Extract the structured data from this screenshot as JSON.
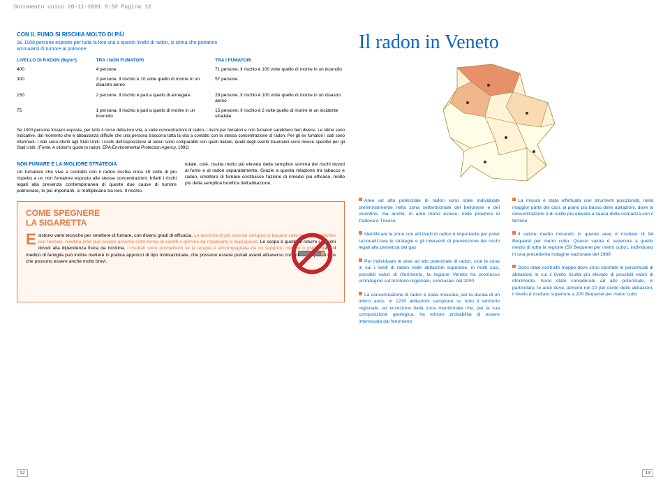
{
  "header": "Documento unico  20-11-2001 9:50  Pagina 12",
  "left": {
    "section_title": "CON IL FUMO SI RISCHIA MOLTO DI PIÙ",
    "intro": "Su 1000 persone esposte per tutta la loro vita a questo livello di radon, si stima che potranno ammalarsi di tumore al polmone:",
    "table": {
      "headers": [
        "LIVELLO DI RADON (Bq/m³)",
        "TRA I NON FUMATORI",
        "TRA I FUMATORI"
      ],
      "rows": [
        [
          "400",
          "4 persone",
          "71 persone. Il rischio è 100 volte quello di morire in un incendio"
        ],
        [
          "300",
          "3 persone. Il rischio è 10 volte quello di morire in un disastro aereo",
          "57 persone"
        ],
        [
          "150",
          "2 persone. Il rischio è pari a quello di annegare",
          "29 persone. Il rischio è 100 volte quello di morire in un disastro aereo"
        ],
        [
          "75",
          "1 persona. Il rischio è pari a quello di morire in un incendio",
          "15 persone. Il rischio è 2 volte quello di morire in un incidente stradale"
        ]
      ]
    },
    "footnote": "Se 1000 persone fossero esposte, per tutto il corso della loro vita, a varie concentrazioni di radon, i rischi per fumatori e non fumatori sarebbero ben diversi. Le stime sono indicative, dal momento che è abbastanza difficile che una persona trascorra tutta la vita a contatto con la stessa concentrazione di radon. Per gli ex fumatori i dati sono intermedi. I dati sono riferiti agli Stati Uniti: i rischi dell'esposizione al radon sono comparabili con quelli italiani, quelli degli eventi traumatici sono invece specifici per gli Stati Uniti. (Fonte: A citizen's guide to radon, EPA-Environmental Protection Agency, 1992)",
    "col_title": "NON FUMARE È LA MIGLIORE STRATEGIA",
    "col1": "Un fumatore che vive a contatto con il radon rischia circa 15 volte di più rispetto a un non fumatore esposto alle stesse concentrazioni. Infatti i rischi legati alla presenza contemporanea di queste due cause di tumore polmonare, le più importanti, si moltiplicano tra loro. Il rischio",
    "col2": "totale, cioè, risulta molto più elevato della semplice somma dei rischi dovuti al fumo e al radon separatamente. Grazie a questa relazione tra tabacco e radon, smettere di fumare costituisce l'azione di rimedio più efficace, molto più della semplice bonifica dell'abitazione.",
    "box": {
      "title1": "COME SPEGNERE",
      "title2": "LA SIGARETTA",
      "dropcap": "E",
      "body_parts": [
        {
          "text": "sistono varie tecniche per smettere di fumare, con diversi gradi di efficacia. ",
          "orange": false
        },
        {
          "text": "Le tecniche di più recente sviluppo si basano sulle terapie sostitutive con farmaci, nicotina (che può essere assunta sotto forma di cerotti o gomme da masticare) e bupropione. ",
          "orange": true
        },
        {
          "text": "Lo scopo è quello di ridurre i sintomi dovuti alla dipendenza fisica da nicotina. ",
          "orange": false
        },
        {
          "text": "I risultati sono promettenti se la terapia è accompagnata da un supporto medico o psicologico. ",
          "orange": true
        },
        {
          "text": "Il medico di famiglia può inoltre mettere in pratica approcci di tipo motivazionale, che possono essere portati avanti attraverso contatti con il paziente e che possono essere anche molto brevi.",
          "orange": false
        }
      ]
    }
  },
  "right": {
    "title": "Il radon in Veneto",
    "bullets_left": [
      "Aree ad alto potenziale di radon sono state individuate preliminarmente nella zona settentrionale del bellunese e del vicentino, ma anche, in aree meno estese, nelle province di Padova e Treviso",
      "Identificare le zone con alti livelli di radon è importante per poter razionalizzare le strategie e gli interventi di prevenzione dei rischi legati alla presenza del gas",
      "Per individuare le aree ad alto potenziale di radon, cioè le zone in cui i livelli di radon nelle abitazioni superano, in molti casi, possibili valori di riferimento, la regione Veneto ha promosso un'indagine sul territorio regionale, conclusasi nel 2000",
      "La concentrazione di radon è stata misurata, per la durata di un intero anno, in 1230 abitazioni campione su tutto il territorio regionale, ad eccezione della zona meridionale che, per la sua composizione geologica, ha minore probabilità di essere interessata dal fenomeno"
    ],
    "bullets_right": [
      "La misura è stata effettuata con strumenti posizionati, nella maggior parte dei casi, al piano più basso delle abitazioni, dove la concentrazione è di solito più elevata a causa della vicinanza con il terreno",
      "Il valore medio misurato in queste aree è risultato di 94 Bequerel per metro cubo. Questo valore è superiore a quello medio di tutta la regione (59 Bequerel per metro cubo), individuato in una precedente indagine nazionale del 1989",
      "Sono state costruite mappe dove sono riportate le percentuali di abitazioni in cui il livello risulta più elevato di possibili valori di riferimento. Sono state considerate ad alto potenziale, in particolare, le aree dove, almeno nel 10 per cento delle abitazioni, il livello è risultato superiore a 200 Bequerel per metro cubo"
    ]
  },
  "pagenum_left": "12",
  "pagenum_right": "13",
  "colors": {
    "blue": "#0066cc",
    "orange": "#e67a45",
    "map_fills": [
      "#fffde5",
      "#fef3d6",
      "#f8dbb0",
      "#f0b88a",
      "#e6916a"
    ]
  }
}
